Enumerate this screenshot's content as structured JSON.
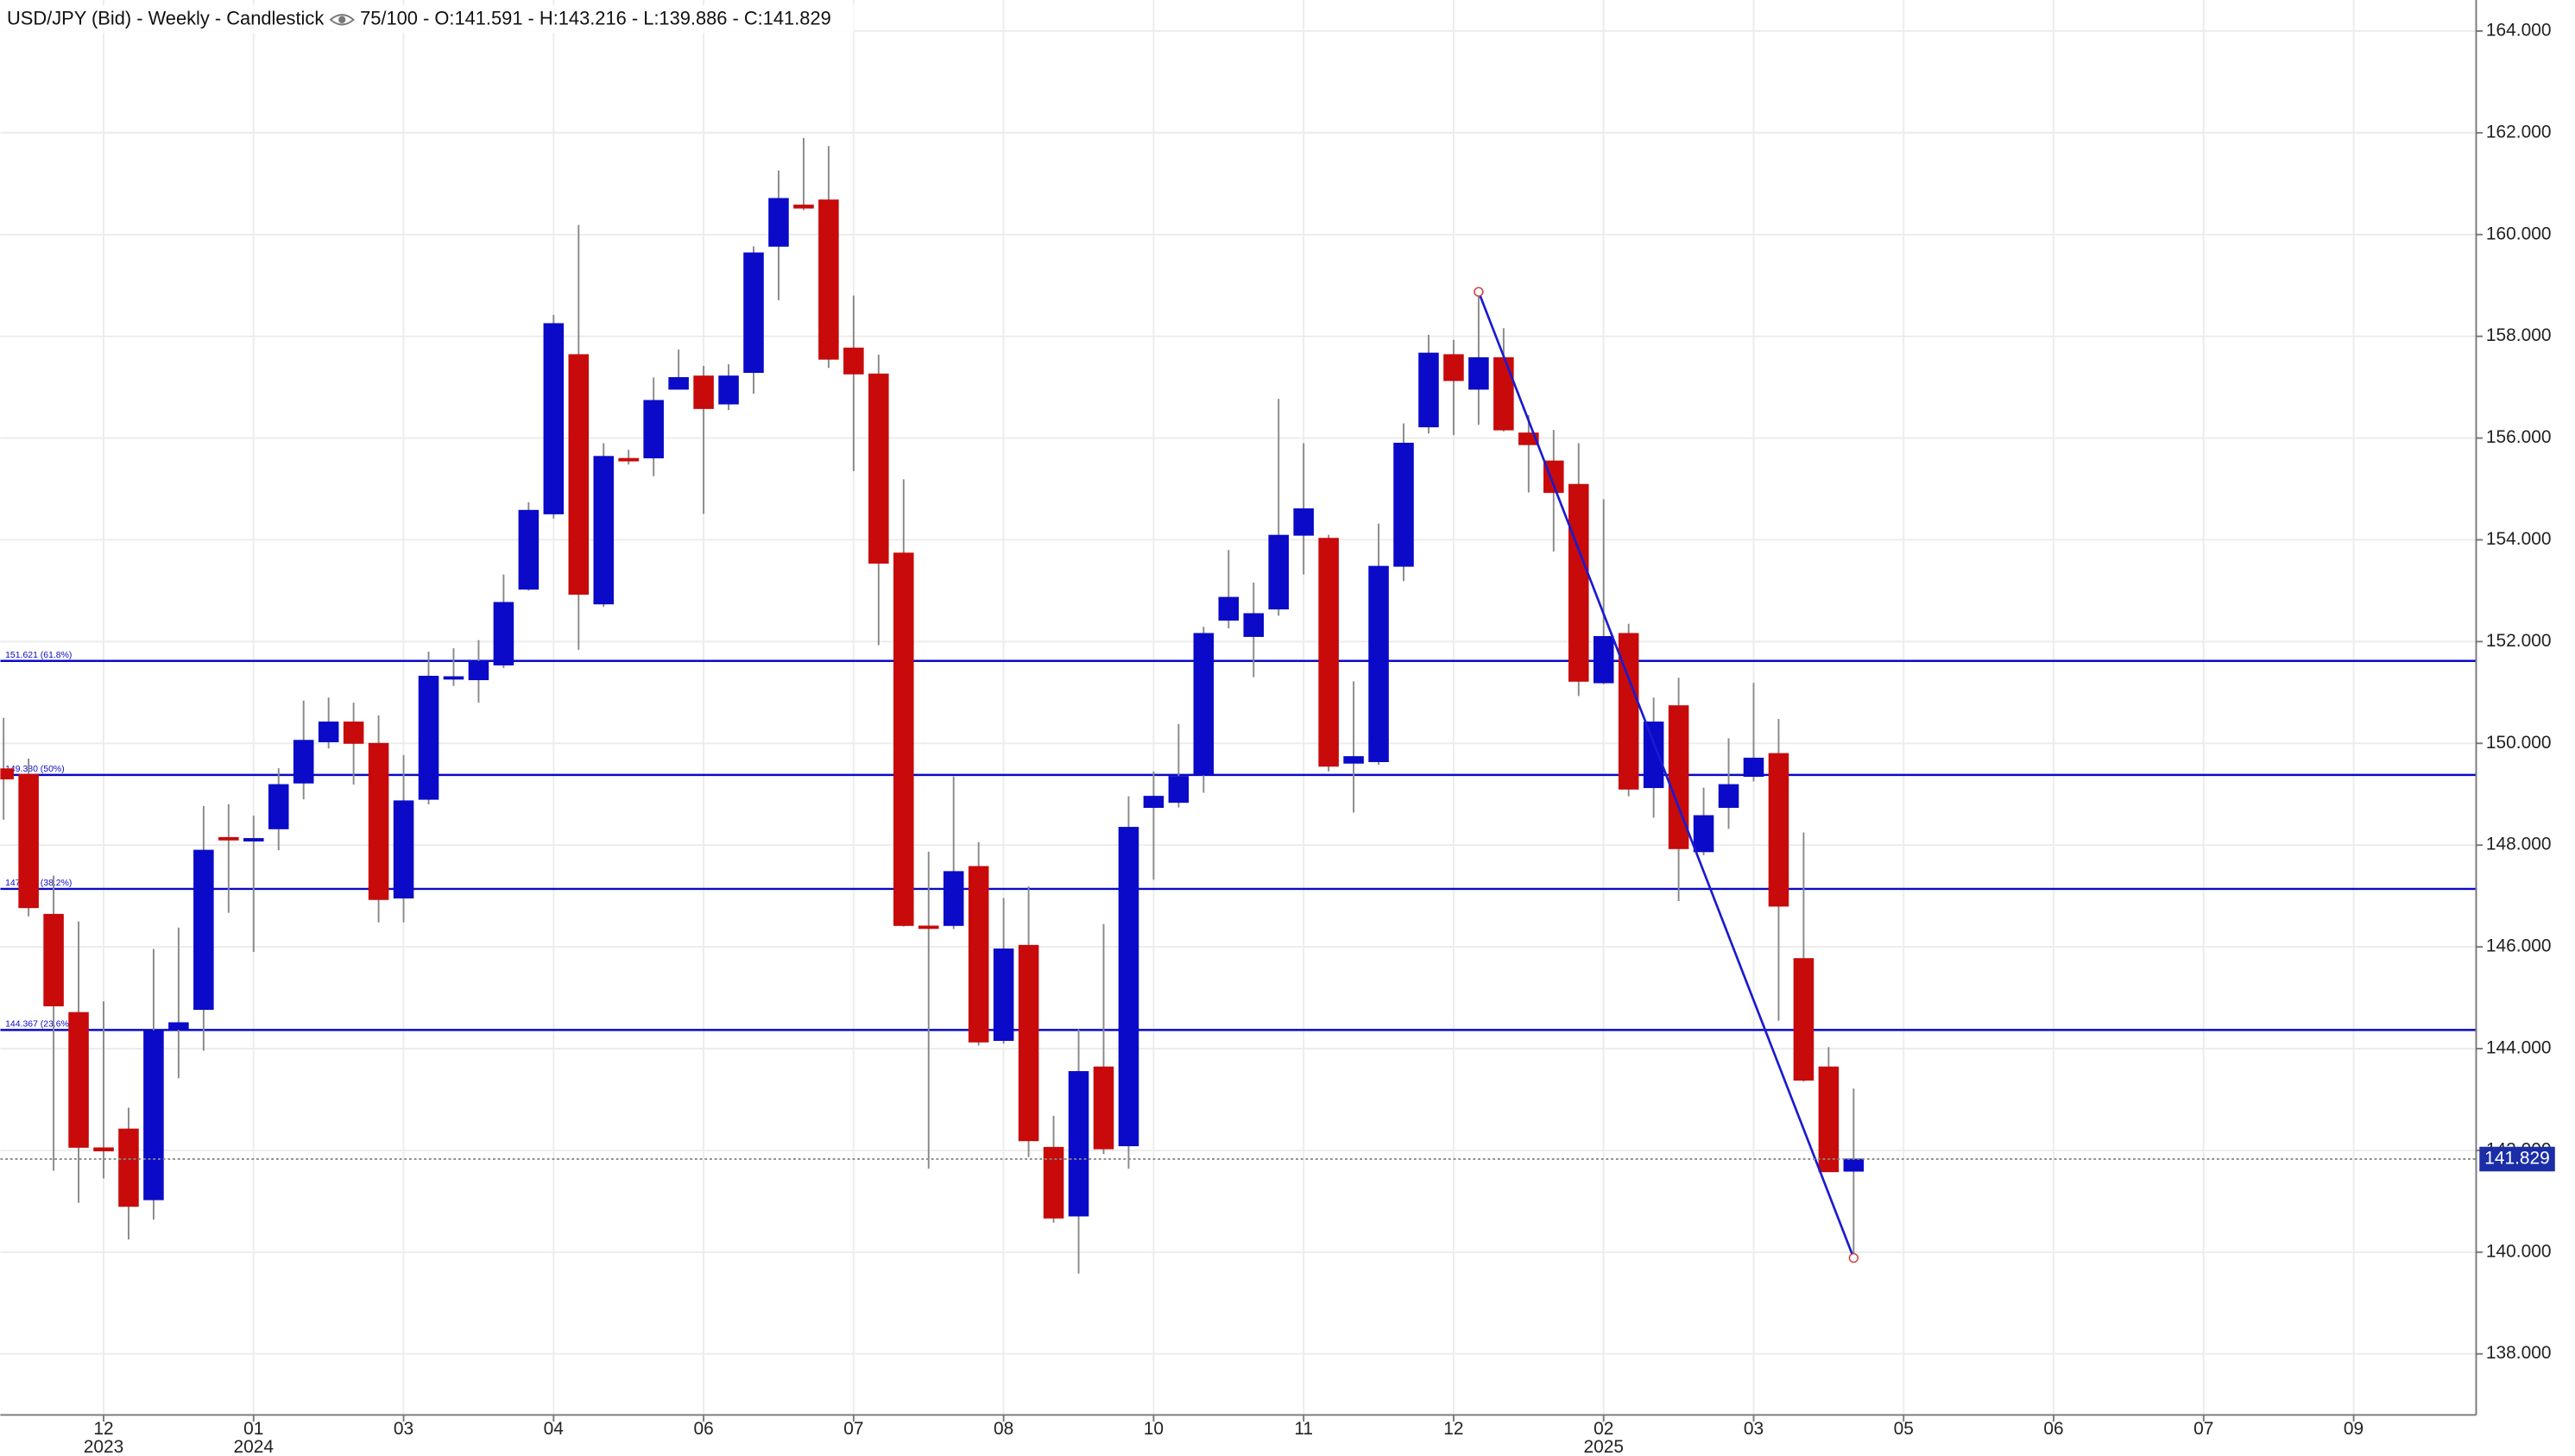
{
  "chart_data": {
    "type": "candlestick",
    "title": "USD/JPY (Bid) - Weekly - Candlestick",
    "subtitle": "75/100 - O:141.591 - H:143.216 - L:139.886 - C:141.829",
    "x": [
      0,
      1,
      2,
      3,
      4,
      5,
      6,
      7,
      8,
      9,
      10,
      11,
      12,
      13,
      14,
      15,
      16,
      17,
      18,
      19,
      20,
      21,
      22,
      23,
      24,
      25,
      26,
      27,
      28,
      29,
      30,
      31,
      32,
      33,
      34,
      35,
      36,
      37,
      38,
      39,
      40,
      41,
      42,
      43,
      44,
      45,
      46,
      47,
      48,
      49,
      50,
      51,
      52,
      53,
      54,
      55,
      56,
      57,
      58,
      59,
      60,
      61,
      62,
      63,
      64,
      65,
      66,
      67,
      68,
      69,
      70,
      71,
      72,
      73,
      74
    ],
    "open": [
      149.5,
      149.39,
      146.64,
      144.71,
      142.05,
      142.42,
      141.03,
      144.38,
      144.77,
      148.15,
      148.08,
      148.32,
      149.22,
      150.03,
      150.42,
      150.0,
      146.96,
      148.9,
      151.27,
      151.25,
      151.54,
      153.03,
      154.51,
      157.64,
      152.74,
      155.6,
      155.61,
      156.96,
      157.22,
      156.67,
      157.29,
      159.77,
      160.58,
      160.68,
      157.77,
      157.26,
      153.74,
      146.41,
      146.42,
      147.58,
      144.16,
      146.03,
      142.06,
      140.71,
      143.64,
      142.09,
      148.74,
      148.84,
      149.38,
      152.42,
      152.1,
      152.64,
      154.09,
      154.03,
      149.61,
      149.64,
      153.48,
      156.22,
      157.64,
      156.96,
      157.58,
      156.1,
      155.55,
      155.09,
      151.19,
      152.16,
      149.13,
      150.74,
      147.87,
      148.74,
      149.35,
      149.8,
      145.77,
      143.64,
      141.591
    ],
    "high": [
      150.5,
      149.7,
      147.4,
      146.5,
      144.93,
      142.84,
      145.96,
      146.38,
      148.77,
      148.8,
      148.58,
      149.51,
      150.84,
      150.9,
      150.8,
      150.55,
      149.77,
      151.8,
      151.87,
      152.03,
      153.32,
      154.74,
      158.42,
      160.19,
      155.9,
      155.77,
      157.19,
      157.74,
      157.42,
      157.45,
      159.77,
      161.26,
      161.9,
      161.74,
      158.8,
      157.64,
      155.19,
      147.87,
      149.35,
      148.06,
      146.96,
      147.19,
      142.68,
      144.38,
      146.45,
      148.96,
      149.45,
      150.38,
      152.29,
      153.8,
      153.16,
      156.77,
      155.9,
      154.1,
      151.22,
      154.32,
      156.29,
      158.03,
      157.93,
      158.874,
      158.16,
      156.45,
      156.16,
      155.9,
      154.8,
      152.35,
      150.9,
      151.29,
      149.13,
      150.1,
      151.19,
      150.48,
      148.25,
      144.03,
      143.216
    ],
    "low": [
      148.5,
      146.6,
      141.6,
      140.97,
      141.45,
      140.25,
      140.64,
      143.42,
      143.96,
      146.67,
      145.9,
      147.9,
      148.9,
      149.9,
      149.19,
      146.48,
      146.48,
      148.8,
      151.13,
      150.8,
      151.48,
      153.0,
      154.42,
      151.84,
      152.68,
      155.48,
      155.25,
      156.96,
      154.51,
      156.55,
      156.87,
      158.71,
      160.48,
      157.38,
      155.35,
      151.93,
      146.4,
      141.64,
      146.35,
      144.06,
      144.1,
      141.87,
      140.58,
      139.58,
      141.93,
      141.64,
      147.32,
      148.74,
      149.03,
      152.26,
      151.3,
      152.51,
      153.32,
      149.45,
      148.64,
      149.58,
      153.19,
      156.09,
      156.06,
      156.26,
      156.13,
      154.93,
      153.77,
      150.93,
      151.16,
      148.96,
      148.54,
      146.9,
      147.8,
      148.32,
      149.25,
      144.55,
      143.35,
      141.58,
      139.886
    ],
    "close": [
      149.3,
      146.77,
      144.84,
      142.06,
      141.99,
      140.9,
      144.35,
      144.51,
      147.9,
      148.1,
      148.13,
      149.19,
      150.06,
      150.42,
      150.0,
      146.93,
      148.87,
      151.32,
      151.31,
      151.61,
      152.77,
      154.58,
      158.25,
      152.93,
      155.64,
      155.55,
      156.74,
      157.19,
      156.58,
      157.22,
      159.64,
      160.71,
      160.52,
      157.55,
      157.26,
      153.54,
      146.42,
      146.38,
      147.48,
      144.13,
      145.96,
      142.19,
      140.67,
      143.55,
      142.03,
      148.35,
      148.96,
      149.35,
      152.16,
      152.87,
      152.55,
      154.09,
      154.61,
      149.55,
      149.74,
      153.48,
      155.9,
      157.67,
      157.13,
      157.58,
      156.16,
      155.87,
      154.93,
      151.22,
      152.1,
      149.1,
      150.42,
      147.93,
      148.58,
      149.19,
      149.71,
      146.8,
      143.38,
      141.58,
      141.829
    ],
    "up_color": "#0a0ac8",
    "down_color": "#c80a0a",
    "xlim": [
      -0.13,
      98.9
    ],
    "ylim": [
      136.8,
      164.61
    ],
    "grid": true,
    "yticks": [
      {
        "value": 138,
        "label": "138.000"
      },
      {
        "value": 140,
        "label": "140.000"
      },
      {
        "value": 142,
        "label": "142.000"
      },
      {
        "value": 144,
        "label": "144.000"
      },
      {
        "value": 146,
        "label": "146.000"
      },
      {
        "value": 148,
        "label": "148.000"
      },
      {
        "value": 150,
        "label": "150.000"
      },
      {
        "value": 152,
        "label": "152.000"
      },
      {
        "value": 154,
        "label": "154.000"
      },
      {
        "value": 156,
        "label": "156.000"
      },
      {
        "value": 158,
        "label": "158.000"
      },
      {
        "value": 160,
        "label": "160.000"
      },
      {
        "value": 162,
        "label": "162.000"
      },
      {
        "value": 164,
        "label": "164.000"
      }
    ],
    "xticks": [
      {
        "value": 4,
        "label": "12"
      },
      {
        "value": 10,
        "label": "01"
      },
      {
        "value": 16,
        "label": "03"
      },
      {
        "value": 22,
        "label": "04"
      },
      {
        "value": 28,
        "label": "06"
      },
      {
        "value": 34,
        "label": "07"
      },
      {
        "value": 40,
        "label": "08"
      },
      {
        "value": 46,
        "label": "10"
      },
      {
        "value": 52,
        "label": "11"
      },
      {
        "value": 58,
        "label": "12"
      },
      {
        "value": 64,
        "label": "02"
      },
      {
        "value": 70,
        "label": "03"
      },
      {
        "value": 76,
        "label": "05"
      },
      {
        "value": 82,
        "label": "06"
      },
      {
        "value": 88,
        "label": "07"
      },
      {
        "value": 94,
        "label": "09"
      }
    ],
    "year_labels": [
      {
        "value": 4,
        "label": "2023"
      },
      {
        "value": 10,
        "label": "2024"
      },
      {
        "value": 64,
        "label": "2025"
      }
    ],
    "hlines": [
      {
        "value": 151.621,
        "label": "151.621 (61.8%)"
      },
      {
        "value": 149.38,
        "label": "149.380 (50%)"
      },
      {
        "value": 147.139,
        "label": "147.139 (38.2%)"
      },
      {
        "value": 144.367,
        "label": "144.367 (23.6%)"
      }
    ],
    "hline_color": "#0a0ac8",
    "trendline": {
      "x": [
        59,
        74
      ],
      "y": [
        158.874,
        139.886
      ],
      "color": "#1a1ad0"
    }
  }
}
